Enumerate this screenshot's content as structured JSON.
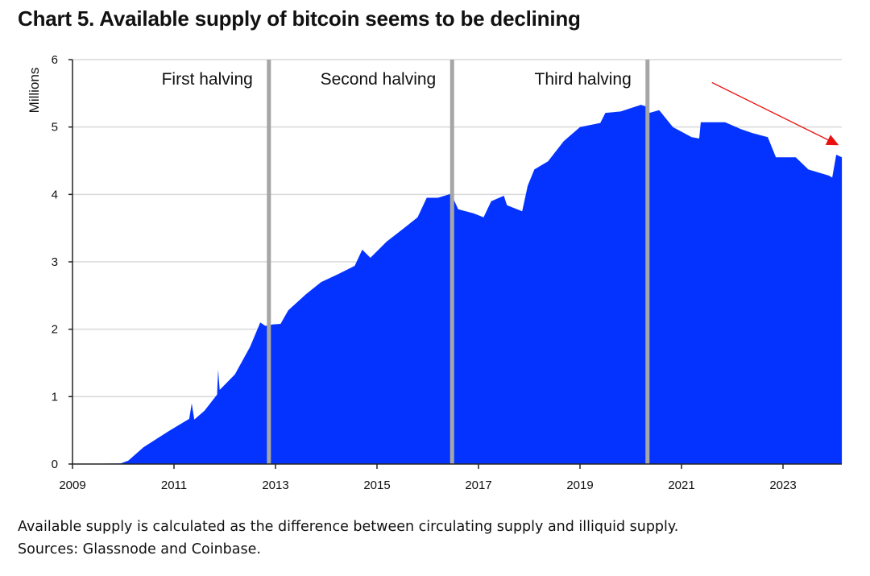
{
  "title": "Chart 5. Available supply of bitcoin seems to be declining",
  "footnotes": [
    "Available supply is calculated as the difference between circulating supply and illiquid supply.",
    "Sources: Glassnode and Coinbase."
  ],
  "chart_data": {
    "type": "area",
    "title": "Chart 5. Available supply of bitcoin seems to be declining",
    "xlabel": "",
    "ylabel": "Millions",
    "xlim": [
      2009,
      2024.16
    ],
    "ylim": [
      0,
      6
    ],
    "x_ticks": [
      "2009",
      "2011",
      "2013",
      "2015",
      "2017",
      "2019",
      "2021",
      "2023"
    ],
    "y_ticks": [
      "0",
      "1",
      "2",
      "3",
      "4",
      "5",
      "6"
    ],
    "grid": "horizontal",
    "colors": {
      "area": "#0433ff",
      "halving_line": "#a6a6a6",
      "arrow": "#e8110f",
      "grid": "#d9d9d9"
    },
    "series": [
      {
        "x": [
          2009,
          2009.95,
          2010.1,
          2010.4,
          2010.9,
          2011.3,
          2011.35,
          2011.4,
          2011.6,
          2011.85,
          2011.87,
          2011.9,
          2012.2,
          2012.5,
          2012.7,
          2012.8,
          2012.87,
          2012.94,
          2013.1,
          2013.25,
          2013.6,
          2013.9,
          2014.24,
          2014.56,
          2014.71,
          2014.87,
          2015.19,
          2015.5,
          2015.8,
          2015.98,
          2016.2,
          2016.46,
          2016.6,
          2016.9,
          2017.1,
          2017.25,
          2017.5,
          2017.56,
          2017.86,
          2017.97,
          2018.1,
          2018.37,
          2018.68,
          2019.0,
          2019.4,
          2019.5,
          2019.8,
          2020.2,
          2020.33,
          2020.37,
          2020.56,
          2020.83,
          2021.2,
          2021.35,
          2021.38,
          2021.86,
          2022.17,
          2022.4,
          2022.7,
          2022.86,
          2023.25,
          2023.5,
          2023.9,
          2023.97,
          2024.05,
          2024.16
        ],
        "y": [
          0,
          0.01,
          0.05,
          0.25,
          0.49,
          0.67,
          0.9,
          0.66,
          0.79,
          1.03,
          1.4,
          1.1,
          1.33,
          1.74,
          2.1,
          2.05,
          2.06,
          2.07,
          2.08,
          2.28,
          2.52,
          2.7,
          2.82,
          2.94,
          3.18,
          3.06,
          3.3,
          3.48,
          3.66,
          3.95,
          3.95,
          4.01,
          3.78,
          3.72,
          3.66,
          3.9,
          3.98,
          3.84,
          3.75,
          4.13,
          4.37,
          4.49,
          4.79,
          5.0,
          5.06,
          5.21,
          5.23,
          5.33,
          5.3,
          5.21,
          5.25,
          5.0,
          4.85,
          4.83,
          5.07,
          5.07,
          4.97,
          4.91,
          4.85,
          4.55,
          4.55,
          4.37,
          4.28,
          4.25,
          4.59,
          4.55
        ]
      }
    ],
    "halvings": [
      {
        "label": "First halving",
        "x": 2012.87
      },
      {
        "label": "Second halving",
        "x": 2016.48
      },
      {
        "label": "Third halving",
        "x": 2020.33
      }
    ],
    "annotations": [
      {
        "type": "arrow",
        "from": [
          2021.6,
          5.66
        ],
        "to": [
          2024.1,
          4.73
        ]
      }
    ]
  }
}
